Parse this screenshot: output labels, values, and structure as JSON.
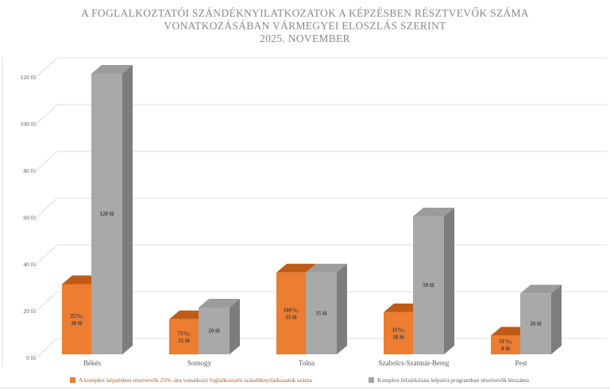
{
  "title": {
    "line1": "A FOGLALKOZTATÓI SZÁNDÉKNYILATKOZATOK  A KÉPZÉSBEN RÉSZTVEVŐK  SZÁMA",
    "line2": "VONATKOZÁSÁBAN VÁRMEGYEI ELOSZLÁS SZERINT",
    "line3": "2025. NOVEMBER"
  },
  "legend": {
    "items": [
      {
        "label": "A  komplex képzésben résztvevők 25% -ára vonatkozó foglalkoztatói szándéknyilatkozatok száma",
        "color": "#ED7D31",
        "text_color": "#a85a22"
      },
      {
        "label": "Komplex felzárkózási képzési programban résztvevők létszáma",
        "color": "#A6A6A6",
        "text_color": "#5f5f55"
      }
    ]
  },
  "chart_data": {
    "type": "bar",
    "style": "3d-clustered-column",
    "title": "A foglalkoztatói szándéknyilatkozatok a képzésben résztvevők száma vonatkozásában vármegyei eloszlás szerint, 2025. november",
    "categories": [
      "Békés",
      "Somogy",
      "Tolna",
      "Szabolcs-Szatmár-Bereg",
      "Pest"
    ],
    "series": [
      {
        "name": "A  komplex képzésben résztvevők 25% -ára vonatkozó foglalkoztatói szándéknyilatkozatok száma",
        "color": "#ED7D31",
        "top_color": "#BE5B17",
        "values": [
          30,
          15,
          35,
          18,
          8
        ],
        "data_labels": [
          "25%;\n30 fő",
          "75%;\n15 fő",
          "100%;\n35 fő",
          "31%;\n18 fő",
          "31%;\n8 fő"
        ]
      },
      {
        "name": "Komplex felzárkózási képzési programban résztvevők létszáma",
        "color": "#A9A9A9",
        "top_color": "#9C9C9C",
        "side_color": "#7D7D7D",
        "values": [
          120,
          20,
          35,
          59,
          26
        ],
        "data_labels": [
          "120 fő",
          "20 fő",
          "35 fő",
          "59 fő",
          "26 fő"
        ]
      }
    ],
    "y_ticks": [
      "0 fő",
      "20 fő",
      "40 fő",
      "60 fő",
      "80 fő",
      "100 fő",
      "120 fő"
    ],
    "ylim": [
      0,
      120
    ],
    "y_tick_step": 20,
    "grid": true,
    "gridline_color": "#dcdcdc",
    "label_color": "#595959",
    "data_label_color": "#404040",
    "legend_position": "bottom"
  }
}
